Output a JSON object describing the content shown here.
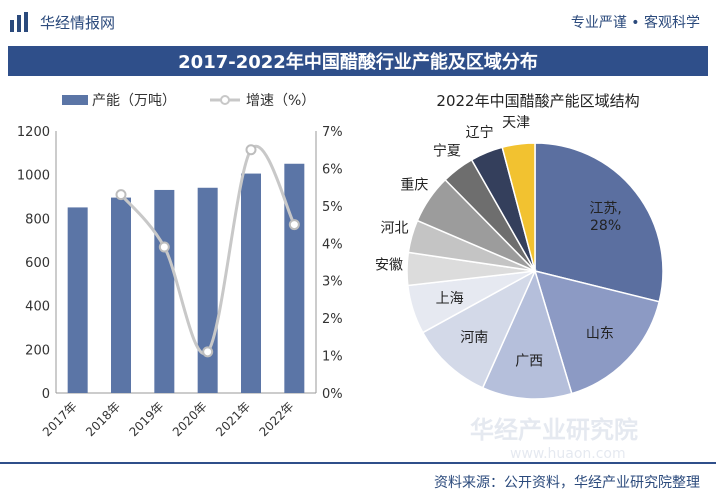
{
  "header": {
    "brand": "华经情报网",
    "slogan": "专业严谨 • 客观科学"
  },
  "title": "2017-2022年中国醋酸行业产能及区域分布",
  "footer": {
    "source": "资料来源：公开资料，华经产业研究院整理"
  },
  "watermark": "华经产业研究院",
  "watermark_url": "www.huaon.com",
  "colors": {
    "bar": "#5b75a6",
    "line": "#c8c8c8",
    "title_band": "#2f4f8a",
    "accent": "#2b4a7c"
  },
  "chart_data": [
    {
      "type": "bar",
      "categories": [
        "2017年",
        "2018年",
        "2019年",
        "2020年",
        "2021年",
        "2022年"
      ],
      "series": [
        {
          "name": "产能（万吨）",
          "values": [
            850,
            895,
            930,
            940,
            1005,
            1050
          ],
          "axis": "left"
        },
        {
          "name": "增速（%）",
          "type": "line",
          "values": [
            null,
            5.3,
            3.9,
            1.1,
            6.5,
            4.5
          ],
          "axis": "right"
        }
      ],
      "ylim": [
        0,
        1200
      ],
      "yticks": [
        "0",
        "200",
        "400",
        "600",
        "800",
        "1000",
        "1200"
      ],
      "y2lim": [
        0,
        7
      ],
      "y2ticks": [
        "0%",
        "1%",
        "2%",
        "3%",
        "4%",
        "5%",
        "6%",
        "7%"
      ]
    },
    {
      "type": "pie",
      "title": "2022年中国醋酸产能区域结构",
      "labels": [
        "江苏, 28%",
        "山东",
        "广西",
        "河南",
        "上海",
        "安徽",
        "河北",
        "重庆",
        "宁夏",
        "辽宁",
        "天津"
      ],
      "values": [
        28,
        16,
        11,
        10,
        6,
        4,
        4,
        6,
        4,
        4,
        4
      ],
      "colors": [
        "#5b6fa0",
        "#8c9ac4",
        "#b5bfdb",
        "#d3d9e8",
        "#e6e9f1",
        "#dcdcdc",
        "#c4c4c4",
        "#9c9c9c",
        "#6e6e6e",
        "#343f5c",
        "#f2c230"
      ]
    }
  ]
}
